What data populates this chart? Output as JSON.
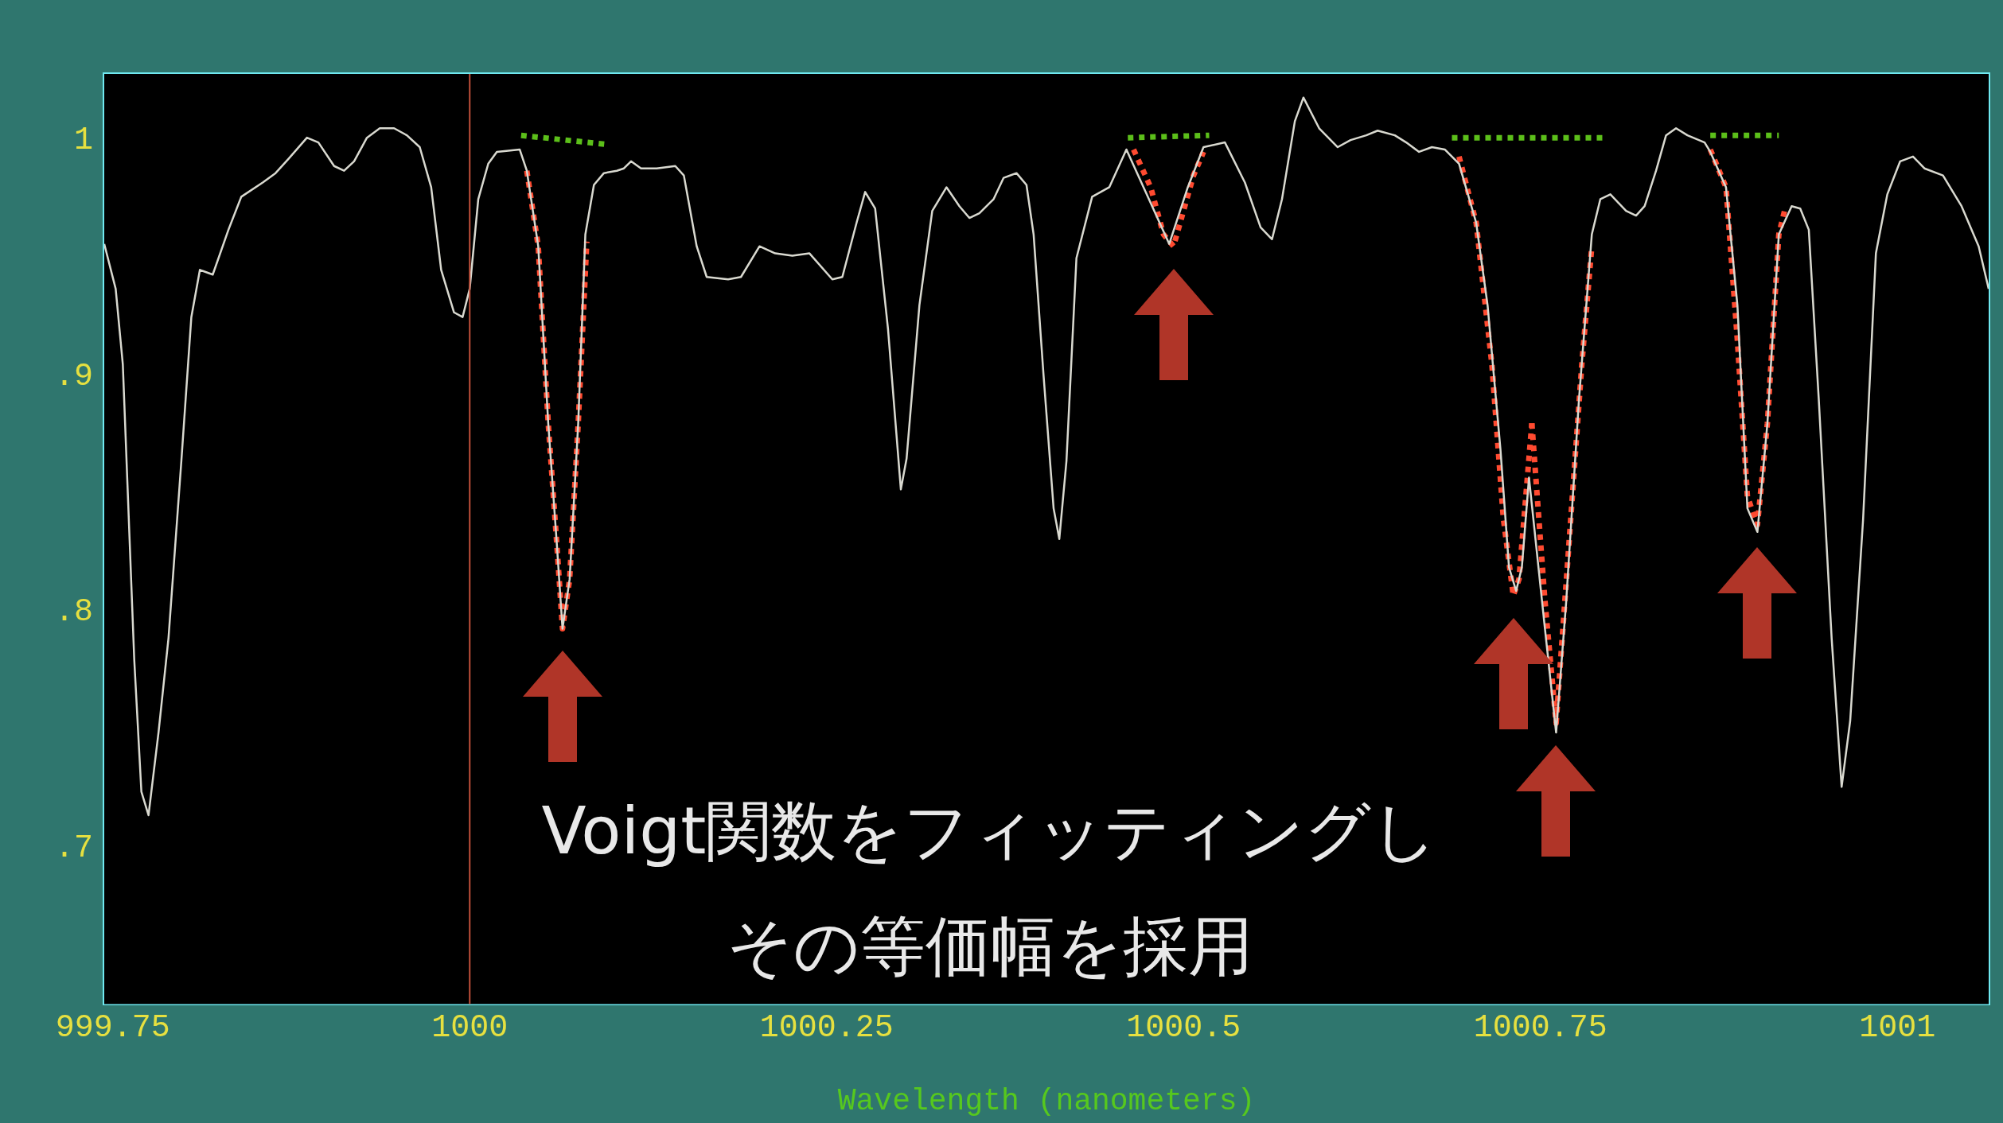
{
  "chart_data": {
    "type": "line",
    "xlabel": "Wavelength (nanometers)",
    "xlim": [
      999.744,
      1001.064
    ],
    "xticks": [
      999.75,
      1000,
      1000.25,
      1000.5,
      1000.75,
      1001
    ],
    "ylim": [
      0.634,
      1.028
    ],
    "yticks": [
      {
        "value": 0.7,
        "label": ".7"
      },
      {
        "value": 0.8,
        "label": ".8"
      },
      {
        "value": 0.9,
        "label": ".9"
      },
      1
    ],
    "legend": false,
    "marker": "none",
    "ref_lines": [
      {
        "axis": "x",
        "value": 1000,
        "color": "#c0503a"
      }
    ],
    "annotations": [
      "Voigt関数をフィッティングし",
      "その等価幅を採用"
    ],
    "series": [
      {
        "color": "#d9d9d0",
        "line_style": "solid",
        "x": [
          999.744,
          999.752,
          999.757,
          999.765,
          999.77,
          999.775,
          999.782,
          999.789,
          999.798,
          999.805,
          999.811,
          999.82,
          999.831,
          999.84,
          999.855,
          999.864,
          999.873,
          999.886,
          999.894,
          999.905,
          999.912,
          999.919,
          999.928,
          999.937,
          999.947,
          999.956,
          999.965,
          999.973,
          999.98,
          999.989,
          999.995,
          1000,
          1000.006,
          1000.013,
          1000.019,
          1000.035,
          1000.04,
          1000.048,
          1000.055,
          1000.061,
          1000.065,
          1000.07,
          1000.076,
          1000.081,
          1000.087,
          1000.094,
          1000.103,
          1000.108,
          1000.113,
          1000.12,
          1000.131,
          1000.144,
          1000.15,
          1000.159,
          1000.166,
          1000.181,
          1000.19,
          1000.203,
          1000.214,
          1000.226,
          1000.238,
          1000.254,
          1000.261,
          1000.271,
          1000.277,
          1000.284,
          1000.293,
          1000.302,
          1000.306,
          1000.315,
          1000.324,
          1000.334,
          1000.343,
          1000.35,
          1000.357,
          1000.367,
          1000.374,
          1000.383,
          1000.39,
          1000.395,
          1000.402,
          1000.409,
          1000.413,
          1000.418,
          1000.425,
          1000.436,
          1000.448,
          1000.46,
          1000.472,
          1000.49,
          1000.503,
          1000.514,
          1000.529,
          1000.543,
          1000.554,
          1000.562,
          1000.569,
          1000.578,
          1000.584,
          1000.595,
          1000.608,
          1000.617,
          1000.628,
          1000.636,
          1000.648,
          1000.656,
          1000.665,
          1000.674,
          1000.683,
          1000.693,
          1000.705,
          1000.713,
          1000.722,
          1000.728,
          1000.733,
          1000.737,
          1000.742,
          1000.753,
          1000.761,
          1000.768,
          1000.777,
          1000.786,
          1000.792,
          1000.799,
          1000.81,
          1000.817,
          1000.823,
          1000.831,
          1000.838,
          1000.845,
          1000.853,
          1000.865,
          1000.869,
          1000.88,
          1000.888,
          1000.895,
          1000.902,
          1000.909,
          1000.917,
          1000.926,
          1000.932,
          1000.938,
          1000.945,
          1000.954,
          1000.961,
          1000.967,
          1000.976,
          1000.985,
          1000.993,
          1001.002,
          1001.011,
          1001.019,
          1001.032,
          1001.045,
          1001.057,
          1001.064
        ],
        "values": [
          0.956,
          0.937,
          0.905,
          0.78,
          0.724,
          0.714,
          0.749,
          0.789,
          0.864,
          0.925,
          0.945,
          0.943,
          0.962,
          0.976,
          0.982,
          0.986,
          0.992,
          1.001,
          0.999,
          0.989,
          0.987,
          0.991,
          1.001,
          1.005,
          1.005,
          1.002,
          0.997,
          0.98,
          0.945,
          0.927,
          0.925,
          0.937,
          0.975,
          0.99,
          0.995,
          0.996,
          0.987,
          0.955,
          0.88,
          0.829,
          0.793,
          0.814,
          0.88,
          0.96,
          0.981,
          0.986,
          0.987,
          0.988,
          0.991,
          0.988,
          0.988,
          0.989,
          0.985,
          0.955,
          0.942,
          0.941,
          0.942,
          0.955,
          0.952,
          0.951,
          0.952,
          0.941,
          0.942,
          0.965,
          0.978,
          0.971,
          0.92,
          0.852,
          0.865,
          0.93,
          0.97,
          0.98,
          0.972,
          0.967,
          0.969,
          0.975,
          0.984,
          0.986,
          0.981,
          0.96,
          0.9,
          0.844,
          0.831,
          0.864,
          0.95,
          0.976,
          0.98,
          0.996,
          0.98,
          0.956,
          0.98,
          0.997,
          0.999,
          0.982,
          0.963,
          0.958,
          0.975,
          1.008,
          1.018,
          1.005,
          0.997,
          1,
          1.002,
          1.004,
          1.002,
          0.999,
          0.995,
          0.997,
          0.996,
          0.99,
          0.965,
          0.93,
          0.869,
          0.819,
          0.809,
          0.819,
          0.857,
          0.794,
          0.749,
          0.804,
          0.89,
          0.96,
          0.975,
          0.977,
          0.97,
          0.968,
          0.972,
          0.987,
          1.002,
          1.005,
          1.002,
          0.999,
          0.995,
          0.98,
          0.93,
          0.844,
          0.834,
          0.88,
          0.96,
          0.972,
          0.971,
          0.962,
          0.89,
          0.789,
          0.726,
          0.754,
          0.839,
          0.952,
          0.977,
          0.991,
          0.993,
          0.988,
          0.985,
          0.972,
          0.955,
          0.937
        ]
      },
      {
        "color": "#ff4a30",
        "line_style": "dotted",
        "x": [
          1000.04,
          1000.048,
          1000.055,
          1000.061,
          1000.065,
          1000.07,
          1000.076,
          1000.082
        ],
        "values": [
          0.987,
          0.955,
          0.88,
          0.829,
          0.793,
          0.814,
          0.88,
          0.957
        ]
      },
      {
        "color": "#ff4a30",
        "line_style": "dotted",
        "x": [
          1000.465,
          1000.477,
          1000.486,
          1000.493,
          1000.5,
          1000.507,
          1000.514
        ],
        "values": [
          0.996,
          0.98,
          0.96,
          0.955,
          0.97,
          0.985,
          0.995
        ]
      },
      {
        "color": "#ff4a30",
        "line_style": "dotted",
        "x": [
          1000.693,
          1000.705,
          1000.716,
          1000.724,
          1000.731,
          1000.735,
          1000.744
        ],
        "values": [
          0.993,
          0.965,
          0.905,
          0.84,
          0.807,
          0.814,
          0.88
        ]
      },
      {
        "color": "#ff4a30",
        "line_style": "dotted",
        "x": [
          1000.744,
          1000.753,
          1000.761,
          1000.77,
          1000.779,
          1000.786
        ],
        "values": [
          0.88,
          0.806,
          0.753,
          0.829,
          0.905,
          0.955
        ]
      },
      {
        "color": "#ff4a30",
        "line_style": "dotted",
        "x": [
          1000.869,
          1000.88,
          1000.888,
          1000.895,
          1000.902,
          1000.909,
          1000.917,
          1000.921
        ],
        "values": [
          0.996,
          0.98,
          0.915,
          0.849,
          0.837,
          0.88,
          0.96,
          0.97
        ]
      },
      {
        "color": "#5cbf1a",
        "line_style": "dotted",
        "x": [
          1000.036,
          1000.098
        ],
        "values": [
          1.002,
          0.998
        ]
      },
      {
        "color": "#5cbf1a",
        "line_style": "dotted",
        "x": [
          1000.461,
          1000.518
        ],
        "values": [
          1.001,
          1.002
        ]
      },
      {
        "color": "#5cbf1a",
        "line_style": "dotted",
        "x": [
          1000.688,
          1000.795
        ],
        "values": [
          1.001,
          1.001
        ]
      },
      {
        "color": "#5cbf1a",
        "line_style": "dotted",
        "x": [
          1000.869,
          1000.917
        ],
        "values": [
          1.002,
          1.002
        ]
      }
    ]
  }
}
